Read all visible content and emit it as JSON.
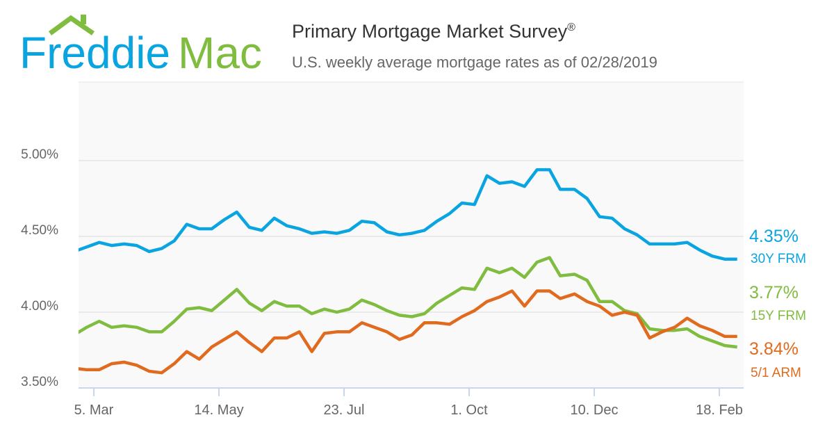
{
  "logo": {
    "text_left": "Freddie",
    "text_right": "Mac",
    "colors": {
      "blue": "#0aa5e0",
      "green": "#80bc3f"
    }
  },
  "header": {
    "title": "Primary Mortgage Market Survey",
    "title_mark": "®",
    "subtitle": "U.S. weekly average mortgage rates as of 02/28/2019"
  },
  "chart_data": {
    "type": "line",
    "title": "Primary Mortgage Market Survey®",
    "subtitle": "U.S. weekly average mortgage rates as of 02/28/2019",
    "xlabel": "",
    "ylabel": "",
    "ylim": [
      3.5,
      5.5
    ],
    "yticks": [
      "3.50%",
      "4.00%",
      "4.50%",
      "5.00%"
    ],
    "ytick_values": [
      3.5,
      4.0,
      4.5,
      5.0
    ],
    "xticks": [
      "5. Mar",
      "14. May",
      "23. Jul",
      "1. Oct",
      "10. Dec",
      "18. Feb"
    ],
    "xtick_dates": [
      "2018-03-05",
      "2018-05-14",
      "2018-07-23",
      "2018-10-01",
      "2018-12-10",
      "2019-02-18"
    ],
    "grid": true,
    "x": [
      "2018-02-22",
      "2018-03-01",
      "2018-03-08",
      "2018-03-15",
      "2018-03-22",
      "2018-03-29",
      "2018-04-05",
      "2018-04-12",
      "2018-04-19",
      "2018-04-26",
      "2018-05-03",
      "2018-05-10",
      "2018-05-17",
      "2018-05-24",
      "2018-05-31",
      "2018-06-07",
      "2018-06-14",
      "2018-06-21",
      "2018-06-28",
      "2018-07-05",
      "2018-07-12",
      "2018-07-19",
      "2018-07-26",
      "2018-08-02",
      "2018-08-09",
      "2018-08-16",
      "2018-08-23",
      "2018-08-30",
      "2018-09-06",
      "2018-09-13",
      "2018-09-20",
      "2018-09-27",
      "2018-10-04",
      "2018-10-11",
      "2018-10-18",
      "2018-10-25",
      "2018-11-01",
      "2018-11-08",
      "2018-11-15",
      "2018-11-21",
      "2018-11-29",
      "2018-12-06",
      "2018-12-13",
      "2018-12-20",
      "2018-12-27",
      "2019-01-03",
      "2019-01-10",
      "2019-01-17",
      "2019-01-24",
      "2019-01-31",
      "2019-02-07",
      "2019-02-14",
      "2019-02-21",
      "2019-02-28"
    ],
    "series": [
      {
        "name": "30Y FRM",
        "last_label": "4.35%",
        "color": "#0aa5e0",
        "values": [
          4.4,
          4.43,
          4.46,
          4.44,
          4.45,
          4.44,
          4.4,
          4.42,
          4.47,
          4.58,
          4.55,
          4.55,
          4.61,
          4.66,
          4.56,
          4.54,
          4.62,
          4.57,
          4.55,
          4.52,
          4.53,
          4.52,
          4.54,
          4.6,
          4.59,
          4.53,
          4.51,
          4.52,
          4.54,
          4.6,
          4.65,
          4.72,
          4.71,
          4.9,
          4.85,
          4.86,
          4.83,
          4.94,
          4.94,
          4.81,
          4.81,
          4.75,
          4.63,
          4.62,
          4.55,
          4.51,
          4.45,
          4.45,
          4.45,
          4.46,
          4.41,
          4.37,
          4.35,
          4.35
        ]
      },
      {
        "name": "15Y FRM",
        "last_label": "3.77%",
        "color": "#80bc3f",
        "values": [
          3.85,
          3.9,
          3.94,
          3.9,
          3.91,
          3.9,
          3.87,
          3.87,
          3.94,
          4.02,
          4.03,
          4.01,
          4.08,
          4.15,
          4.06,
          4.01,
          4.07,
          4.04,
          4.04,
          3.99,
          4.02,
          4.0,
          4.02,
          4.08,
          4.05,
          4.01,
          3.98,
          3.97,
          3.99,
          4.06,
          4.11,
          4.16,
          4.15,
          4.29,
          4.26,
          4.29,
          4.23,
          4.33,
          4.36,
          4.24,
          4.25,
          4.21,
          4.07,
          4.07,
          4.01,
          3.99,
          3.89,
          3.88,
          3.88,
          3.89,
          3.84,
          3.81,
          3.78,
          3.77
        ]
      },
      {
        "name": "5/1 ARM",
        "last_label": "3.84%",
        "color": "#e06b1f",
        "values": [
          3.63,
          3.62,
          3.62,
          3.66,
          3.67,
          3.65,
          3.61,
          3.6,
          3.66,
          3.74,
          3.69,
          3.77,
          3.82,
          3.87,
          3.8,
          3.74,
          3.83,
          3.83,
          3.87,
          3.74,
          3.86,
          3.87,
          3.87,
          3.93,
          3.9,
          3.87,
          3.82,
          3.85,
          3.93,
          3.93,
          3.92,
          3.97,
          4.01,
          4.07,
          4.1,
          4.14,
          4.04,
          4.14,
          4.14,
          4.09,
          4.12,
          4.07,
          4.04,
          3.98,
          4.0,
          3.98,
          3.83,
          3.87,
          3.9,
          3.96,
          3.91,
          3.88,
          3.84,
          3.84
        ]
      }
    ]
  }
}
